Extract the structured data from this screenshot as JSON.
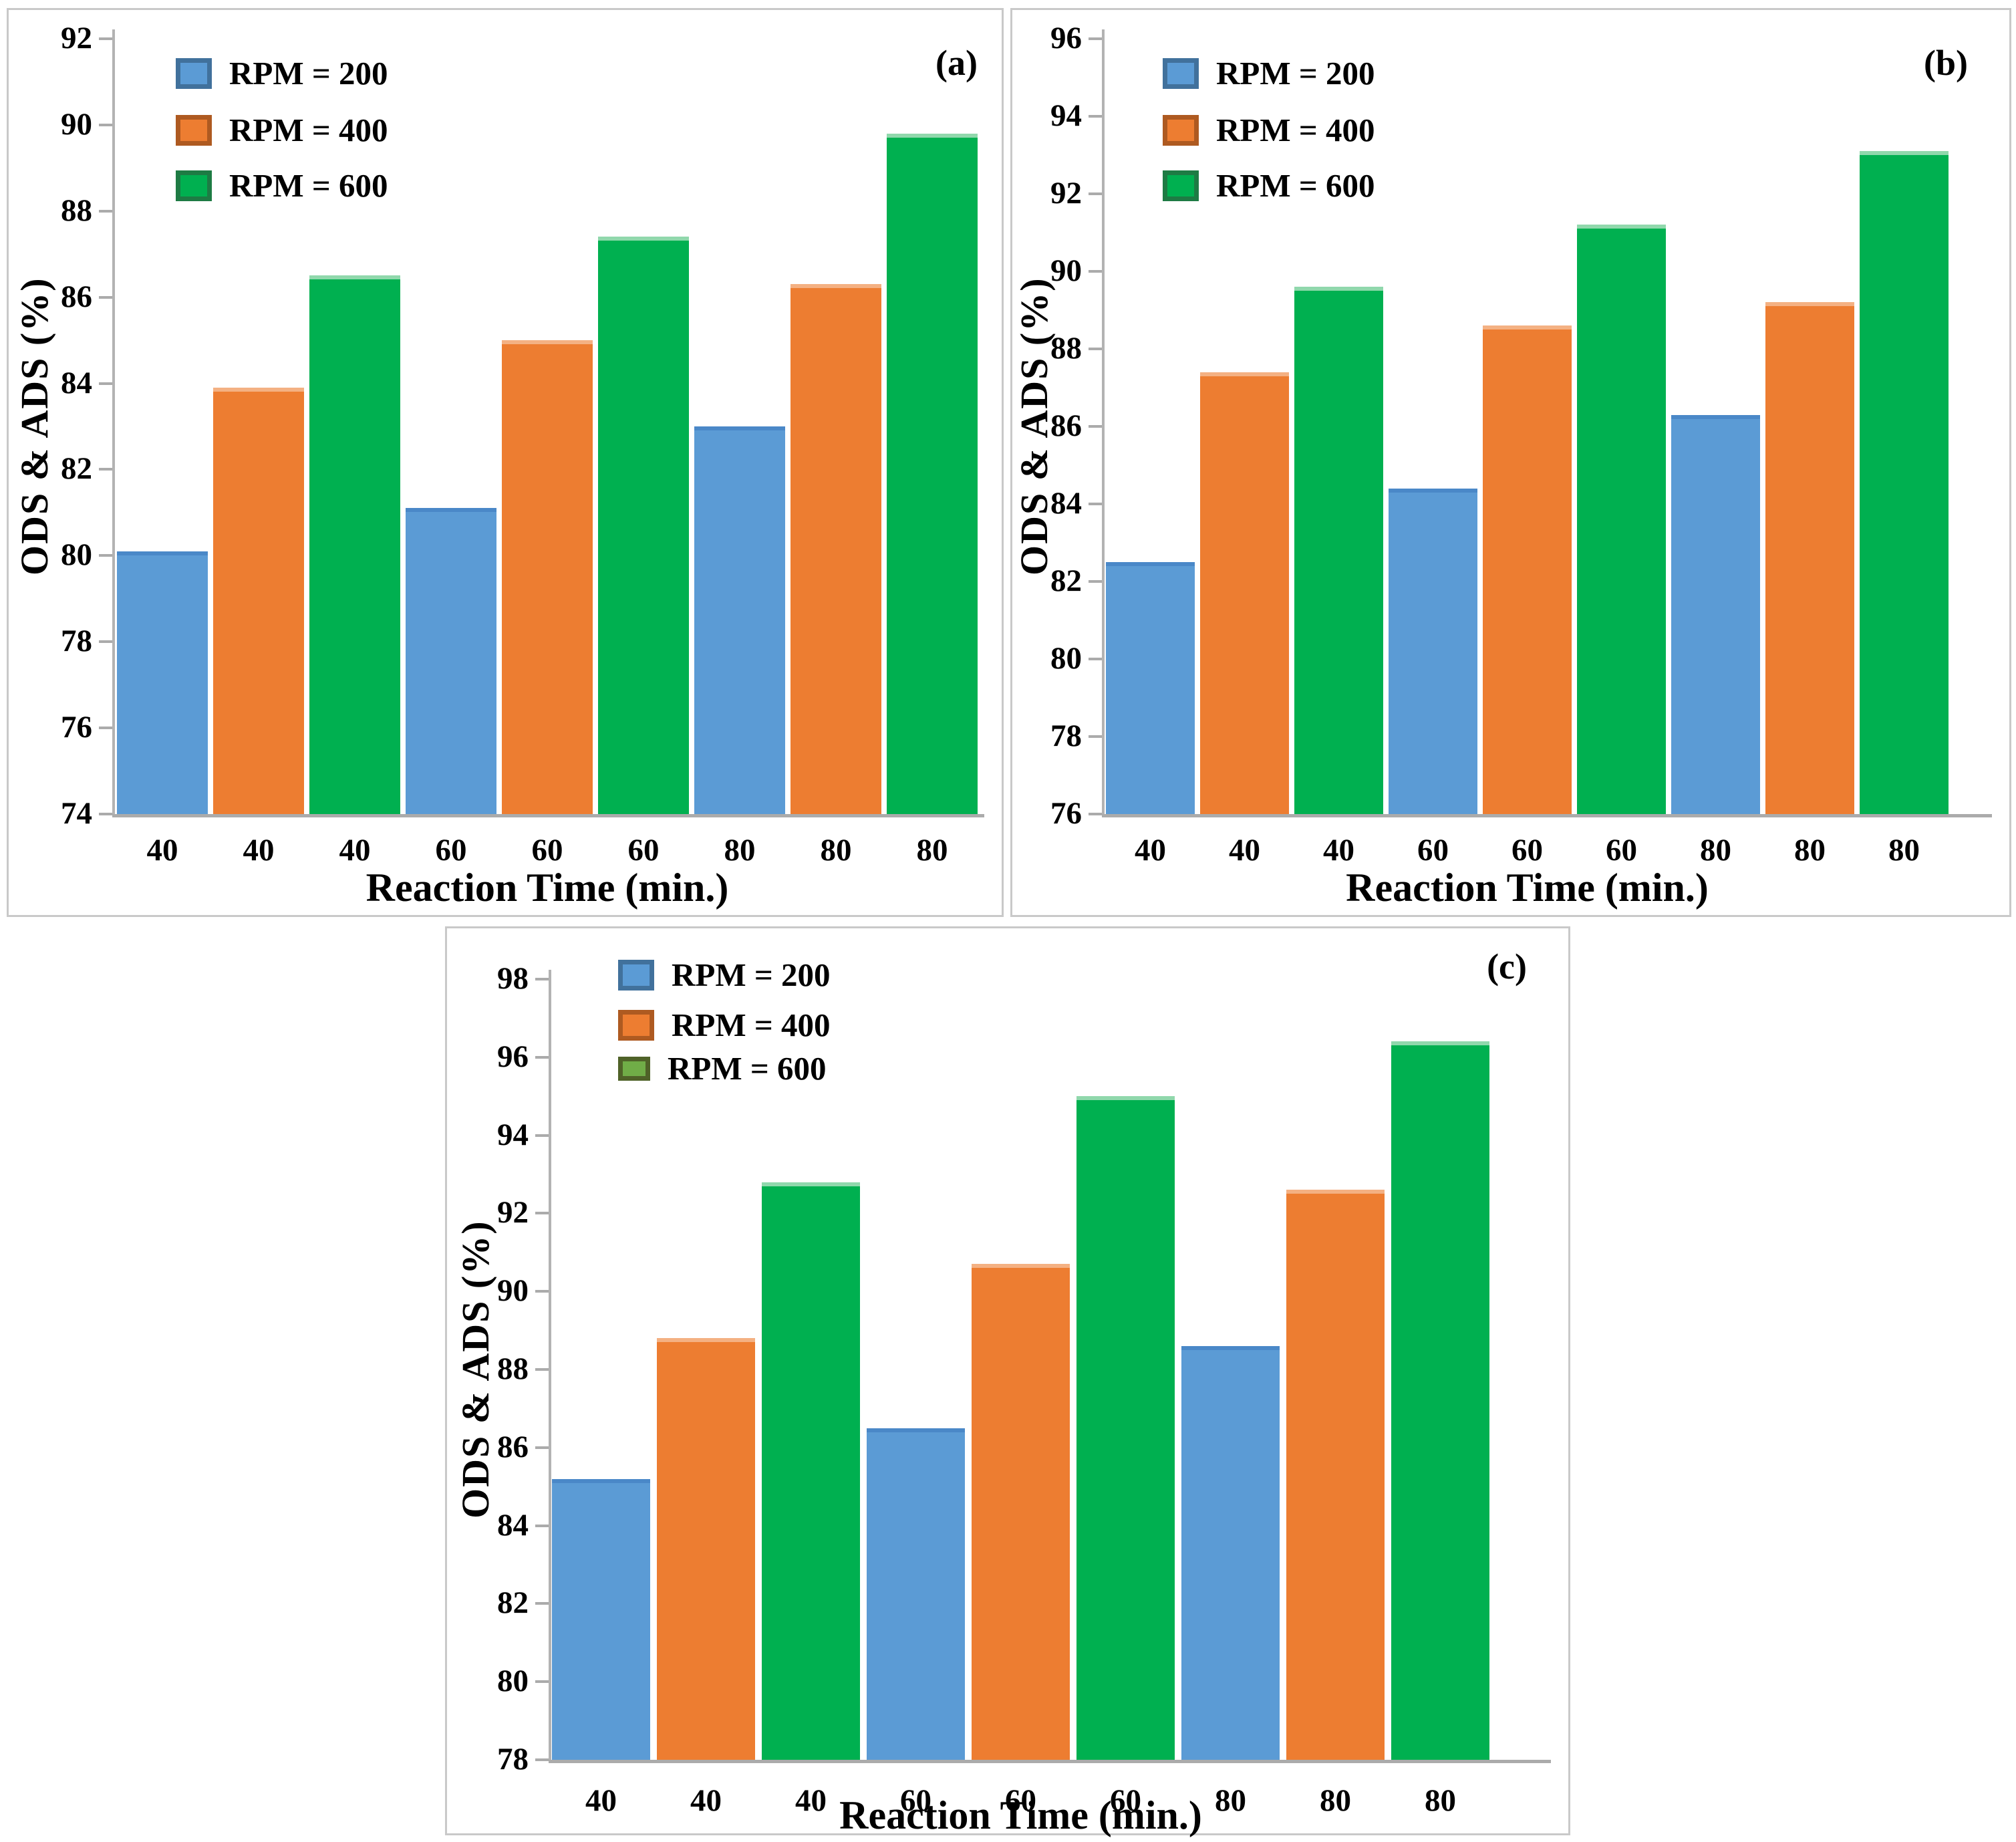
{
  "figure": {
    "description": "Three-panel grouped bar figure of ODS & ADS (%) versus reaction time at different stirring speeds",
    "panel_letters": [
      "(a)",
      "(b)",
      "(c)"
    ]
  },
  "chart_data": [
    {
      "type": "bar",
      "panel_label": "(a)",
      "title": "",
      "xlabel": "Reaction Time (min.)",
      "ylabel": "ODS & ADS (%)",
      "ylim": [
        74,
        92
      ],
      "ytick_step": 2,
      "grid": false,
      "legend_position": "top-left",
      "group_categories": [
        "40",
        "60",
        "80"
      ],
      "x_tick_labels": [
        "40",
        "40",
        "40",
        "60",
        "60",
        "60",
        "80",
        "80",
        "80"
      ],
      "series": [
        {
          "name": "RPM = 200",
          "color": "#5B9BD5",
          "edge_color": "#4a88c8",
          "swatch_fill": "#5B9BD5",
          "swatch_border": "#41719C",
          "values": [
            80.1,
            81.1,
            83.0
          ]
        },
        {
          "name": "RPM = 400",
          "color": "#ED7D31",
          "edge_color": "#F4B183",
          "swatch_fill": "#ED7D31",
          "swatch_border": "#AE5A21",
          "values": [
            83.9,
            85.0,
            86.3
          ]
        },
        {
          "name": "RPM = 600",
          "color": "#00B050",
          "edge_color": "#90D8AC",
          "swatch_fill": "#00B050",
          "swatch_border": "#1E7B44",
          "values": [
            86.5,
            87.4,
            89.8
          ]
        }
      ]
    },
    {
      "type": "bar",
      "panel_label": "(b)",
      "title": "",
      "xlabel": "Reaction Time (min.)",
      "ylabel": "ODS & ADS (%)",
      "ylim": [
        76,
        96
      ],
      "ytick_step": 2,
      "grid": false,
      "legend_position": "top-left",
      "group_categories": [
        "40",
        "60",
        "80"
      ],
      "x_tick_labels": [
        "40",
        "40",
        "40",
        "60",
        "60",
        "60",
        "80",
        "80",
        "80"
      ],
      "series": [
        {
          "name": "RPM = 200",
          "color": "#5B9BD5",
          "edge_color": "#4a88c8",
          "swatch_fill": "#5B9BD5",
          "swatch_border": "#41719C",
          "values": [
            82.5,
            84.4,
            86.3
          ]
        },
        {
          "name": "RPM = 400",
          "color": "#ED7D31",
          "edge_color": "#F4B183",
          "swatch_fill": "#ED7D31",
          "swatch_border": "#AE5A21",
          "values": [
            87.4,
            88.6,
            89.2
          ]
        },
        {
          "name": "RPM = 600",
          "color": "#00B050",
          "edge_color": "#90D8AC",
          "swatch_fill": "#00B050",
          "swatch_border": "#1E7B44",
          "values": [
            89.6,
            91.2,
            93.1
          ]
        }
      ]
    },
    {
      "type": "bar",
      "panel_label": "(c)",
      "title": "",
      "xlabel": "Reaction Time (min.)",
      "ylabel": "ODS & ADS (%)",
      "ylim": [
        78,
        98
      ],
      "ytick_step": 2,
      "grid": false,
      "legend_position": "top-left",
      "group_categories": [
        "40",
        "60",
        "80"
      ],
      "x_tick_labels": [
        "40",
        "40",
        "40",
        "60",
        "60",
        "60",
        "80",
        "80",
        "80"
      ],
      "series": [
        {
          "name": "RPM = 200",
          "color": "#5B9BD5",
          "edge_color": "#4a88c8",
          "swatch_fill": "#5B9BD5",
          "swatch_border": "#41719C",
          "values": [
            85.2,
            86.5,
            88.6
          ]
        },
        {
          "name": "RPM = 400",
          "color": "#ED7D31",
          "edge_color": "#F4B183",
          "swatch_fill": "#ED7D31",
          "swatch_border": "#AE5A21",
          "values": [
            88.8,
            90.7,
            92.6
          ]
        },
        {
          "name": "RPM = 600",
          "color": "#00B050",
          "edge_color": "#90D8AC",
          "swatch_fill": "#70AD47",
          "swatch_border": "#4F6228",
          "swatch_small": true,
          "values": [
            92.8,
            95.0,
            96.4
          ]
        }
      ]
    }
  ]
}
